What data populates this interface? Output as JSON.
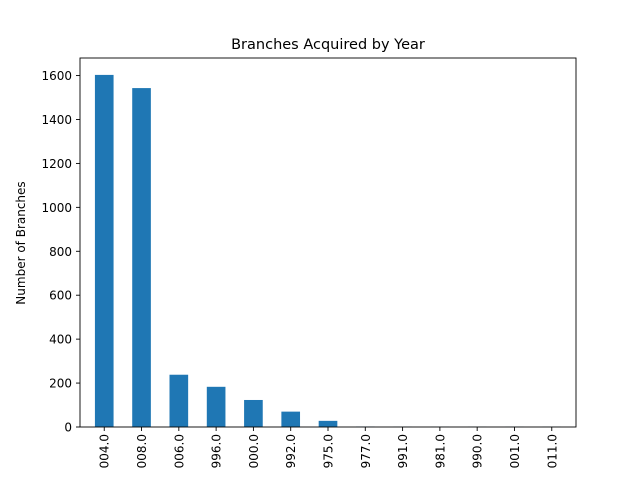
{
  "chart_data": {
    "type": "bar",
    "title": "Branches Acquired by Year",
    "xlabel": "",
    "ylabel": "Number of Branches",
    "categories": [
      "004.0",
      "008.0",
      "006.0",
      "996.0",
      "000.0",
      "992.0",
      "975.0",
      "977.0",
      "991.0",
      "981.0",
      "990.0",
      "001.0",
      "011.0"
    ],
    "values": [
      1603,
      1543,
      238,
      183,
      123,
      70,
      28,
      2,
      1,
      1,
      1,
      1,
      1
    ],
    "ylim": [
      0,
      1680
    ],
    "yticks": [
      0,
      200,
      400,
      600,
      800,
      1000,
      1200,
      1400,
      1600
    ],
    "ytick_labels": [
      "0",
      "200",
      "400",
      "600",
      "800",
      "1000",
      "1200",
      "1400",
      "1600"
    ],
    "bar_color": "#1f77b4",
    "grid": false,
    "legend": "none"
  }
}
